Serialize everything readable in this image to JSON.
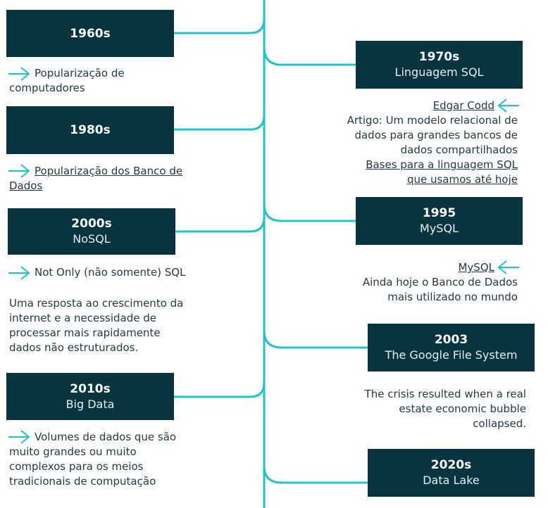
{
  "accent_color": "#1ec3cd",
  "box_color": "#083440",
  "icons": {
    "arrow_right": "arrow-right-icon",
    "arrow_left": "arrow-left-icon"
  },
  "events": {
    "e1960": {
      "year": "1960s",
      "desc": "Popularização de computadores"
    },
    "e1970": {
      "year": "1970s",
      "title": "Linguagem SQL",
      "link": "Edgar Codd",
      "text": [
        "Artigo: Um modelo relacional de",
        "dados para grandes bancos de",
        "dados compartilhados"
      ],
      "link2": [
        "Bases para a linguagem SQL",
        "que usamos até hoje"
      ]
    },
    "e1980": {
      "year": "1980s",
      "desc": [
        "Popularização dos Banco de",
        "Dados"
      ]
    },
    "e1995": {
      "year": "1995",
      "title": "MySQL",
      "link": "MySQL",
      "text": [
        "Ainda hoje o Banco de Dados",
        "mais utilizado no mundo"
      ]
    },
    "e2000": {
      "year": "2000s",
      "title": "NoSQL",
      "desc": "Not Only (não somente) SQL",
      "text": [
        "Uma resposta ao crescimento da",
        "internet e a necessidade de",
        "processar mais rapidamente",
        "dados não estruturados."
      ]
    },
    "e2003": {
      "year": "2003",
      "title": "The Google File System",
      "text": [
        "The crisis resulted when a real",
        "estate economic bubble",
        "collapsed."
      ]
    },
    "e2010": {
      "year": "2010s",
      "title": "Big Data",
      "desc": [
        "Volumes de dados que são",
        "muito grandes ou muito",
        "complexos para os meios",
        "tradicionais de computação"
      ]
    },
    "e2020": {
      "year": "2020s",
      "title": "Data Lake"
    }
  }
}
